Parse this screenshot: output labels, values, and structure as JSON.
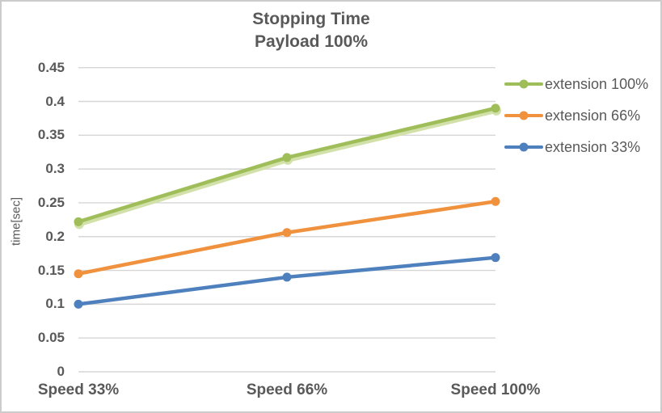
{
  "frame": {
    "background": "#ffffff",
    "border_color": "#cccccc"
  },
  "title": {
    "line1": "Stopping Time",
    "line2": "Payload 100%",
    "color": "#595959"
  },
  "chart_data": {
    "type": "line",
    "title": "Stopping Time Payload 100%",
    "categories": [
      "Speed 33%",
      "Speed 66%",
      "Speed 100%"
    ],
    "series": [
      {
        "name": "extension 100%",
        "color": "#9fbe59",
        "glow_color": "#d2e0a9",
        "values": [
          0.222,
          0.317,
          0.39
        ]
      },
      {
        "name": "extension 66%",
        "color": "#f0913e",
        "glow_color": null,
        "values": [
          0.145,
          0.206,
          0.252
        ]
      },
      {
        "name": "extension 33%",
        "color": "#4d80bc",
        "glow_color": null,
        "values": [
          0.1,
          0.14,
          0.169
        ]
      }
    ],
    "xlabel": "",
    "ylabel": "time[sec]",
    "ylim": [
      0,
      0.45
    ],
    "ytick_step": 0.05,
    "yticks": [
      "0.45",
      "0.4",
      "0.35",
      "0.3",
      "0.25",
      "0.2",
      "0.15",
      "0.1",
      "0.05",
      "0"
    ],
    "grid": true,
    "gridline_color": "#d6d6d6",
    "text_color": "#595959",
    "legend_position": "right",
    "marker": "circle"
  }
}
